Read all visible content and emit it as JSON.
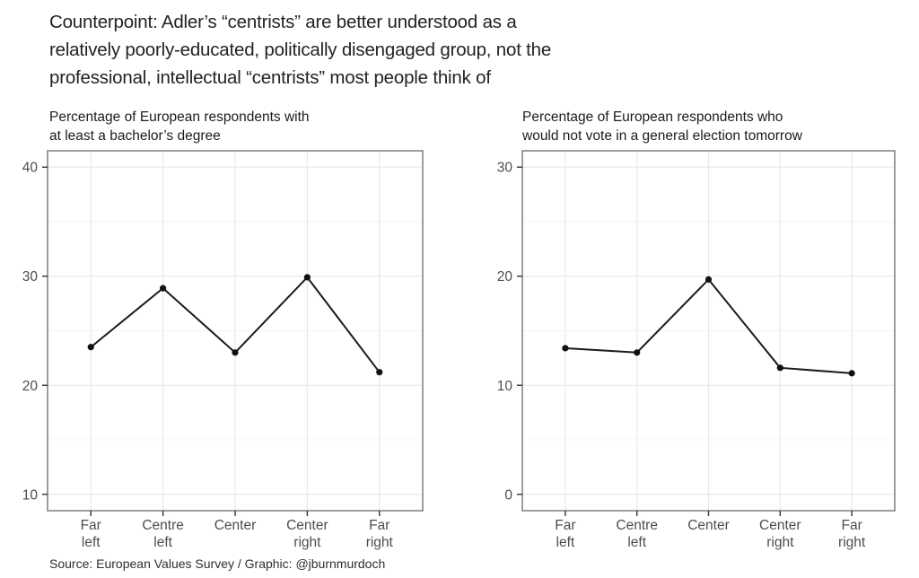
{
  "title_lines": [
    "Counterpoint: Adler’s “centrists” are better understood as a",
    "relatively poorly-educated, politically disengaged group, not the",
    "professional, intellectual “centrists” most people think of"
  ],
  "source": "Source: European Values Survey / Graphic: @jburnmurdoch",
  "colors": {
    "line": "#1b1b1b",
    "point": "#111111",
    "grid_major": "#e9e9e9",
    "grid_minor": "#f4f4f4",
    "panel_border": "#858585",
    "tick": "#333333",
    "axis_text": "#4d4d4d",
    "background": "#ffffff"
  },
  "chart_data": [
    {
      "type": "line",
      "title_lines": [
        "Percentage of European respondents with",
        "at least a bachelor’s degree"
      ],
      "categories": [
        "Far left",
        "Centre left",
        "Center",
        "Center right",
        "Far right"
      ],
      "category_label_lines": [
        [
          "Far",
          "left"
        ],
        [
          "Centre",
          "left"
        ],
        [
          "Center"
        ],
        [
          "Center",
          "right"
        ],
        [
          "Far",
          "right"
        ]
      ],
      "values": [
        23.5,
        28.9,
        23.0,
        29.9,
        21.2
      ],
      "ylim": [
        8.5,
        41.5
      ],
      "yticks_major": [
        10,
        20,
        30,
        40
      ],
      "yticks_minor": [
        15,
        25,
        35
      ],
      "xlabel": "",
      "ylabel": "",
      "grid": true,
      "legend": "none"
    },
    {
      "type": "line",
      "title_lines": [
        "Percentage of European respondents who",
        "would not vote in a general election tomorrow"
      ],
      "categories": [
        "Far left",
        "Centre left",
        "Center",
        "Center right",
        "Far right"
      ],
      "category_label_lines": [
        [
          "Far",
          "left"
        ],
        [
          "Centre",
          "left"
        ],
        [
          "Center"
        ],
        [
          "Center",
          "right"
        ],
        [
          "Far",
          "right"
        ]
      ],
      "values": [
        13.4,
        13.0,
        19.7,
        11.6,
        11.1
      ],
      "ylim": [
        -1.5,
        31.5
      ],
      "yticks_major": [
        0,
        10,
        20,
        30
      ],
      "yticks_minor": [
        5,
        15,
        25
      ],
      "xlabel": "",
      "ylabel": "",
      "grid": true,
      "legend": "none"
    }
  ]
}
